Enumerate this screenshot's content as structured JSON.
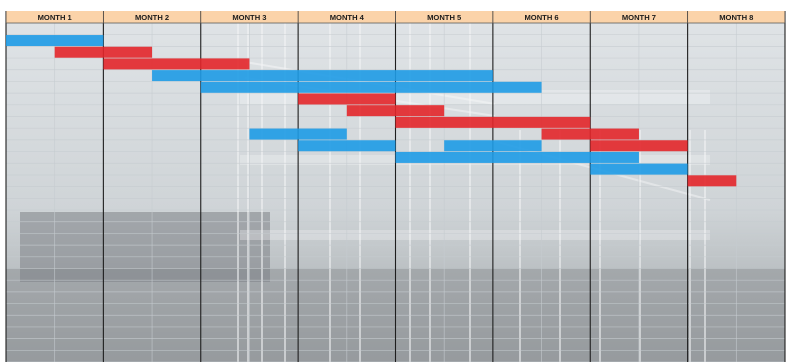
{
  "chart_data": {
    "type": "bar",
    "subtype": "gantt",
    "categories": [
      "MONTH 1",
      "MONTH 2",
      "MONTH 3",
      "MONTH 4",
      "MONTH 5",
      "MONTH 6",
      "MONTH 7",
      "MONTH 8"
    ],
    "x_unit": "month",
    "xlim": [
      0,
      8
    ],
    "row_count": 29,
    "grid": true,
    "legend": "none",
    "colors": {
      "blue": "#1e9be6",
      "red": "#e3262a",
      "header": "#fbd3a9",
      "grid_light": "#c6ccd0",
      "month_divider": "#1e1e1e"
    },
    "tasks": [
      {
        "row": 1,
        "start": 0.0,
        "end": 1.0,
        "color": "blue"
      },
      {
        "row": 2,
        "start": 0.5,
        "end": 1.5,
        "color": "red"
      },
      {
        "row": 3,
        "start": 1.0,
        "end": 2.5,
        "color": "red"
      },
      {
        "row": 4,
        "start": 1.5,
        "end": 5.0,
        "color": "blue"
      },
      {
        "row": 5,
        "start": 2.0,
        "end": 5.5,
        "color": "blue"
      },
      {
        "row": 6,
        "start": 3.0,
        "end": 4.0,
        "color": "red"
      },
      {
        "row": 7,
        "start": 3.5,
        "end": 4.5,
        "color": "red"
      },
      {
        "row": 8,
        "start": 4.0,
        "end": 6.0,
        "color": "red"
      },
      {
        "row": 9,
        "start": 5.5,
        "end": 6.5,
        "color": "red"
      },
      {
        "row": 9,
        "start": 2.5,
        "end": 3.5,
        "color": "blue"
      },
      {
        "row": 10,
        "start": 3.0,
        "end": 4.0,
        "color": "blue"
      },
      {
        "row": 10,
        "start": 4.5,
        "end": 5.5,
        "color": "blue"
      },
      {
        "row": 10,
        "start": 6.0,
        "end": 7.0,
        "color": "red"
      },
      {
        "row": 11,
        "start": 4.0,
        "end": 6.5,
        "color": "blue"
      },
      {
        "row": 12,
        "start": 6.0,
        "end": 7.0,
        "color": "blue"
      },
      {
        "row": 13,
        "start": 7.0,
        "end": 7.5,
        "color": "red"
      }
    ]
  }
}
